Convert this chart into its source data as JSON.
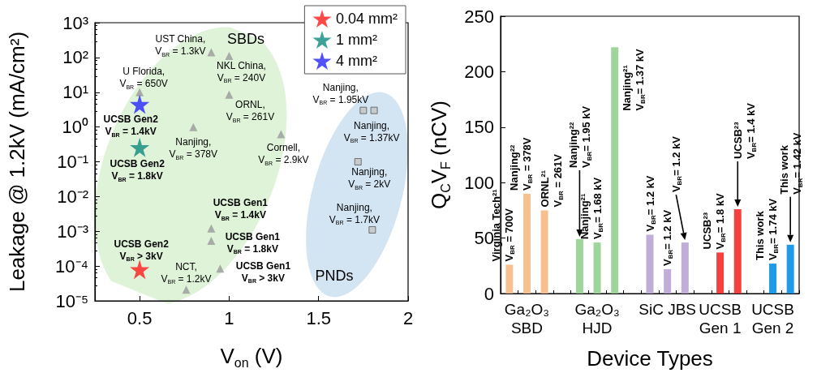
{
  "chart_data": [
    {
      "type": "scatter",
      "xlabel": "V$_{on}$ (V)",
      "ylabel": "Leakage @ 1.2kV (mA/cm²)",
      "log": "y",
      "xlim": [
        0.25,
        2
      ],
      "xticks": [
        0.5,
        1,
        1.5,
        2
      ],
      "ylim": [
        1e-05,
        1000
      ],
      "yticks": [
        {
          "value": 1e-05,
          "label": "10⁻⁵"
        },
        {
          "value": 0.0001,
          "label": "10⁻⁴"
        },
        {
          "value": 0.001,
          "label": "10⁻³"
        },
        {
          "value": 0.01,
          "label": "10⁻²"
        },
        {
          "value": 0.1,
          "label": "10⁻¹"
        },
        {
          "value": 1,
          "label": "10⁰"
        },
        {
          "value": 10,
          "label": "10¹"
        },
        {
          "value": 100,
          "label": "10²"
        },
        {
          "value": 1000,
          "label": "10³"
        }
      ],
      "legend": "top right",
      "series": [
        {
          "name": "0.04 mm²",
          "marker": "star",
          "color": "#ff1a1a",
          "x": [
            0.5
          ],
          "values": [
            8e-05
          ]
        },
        {
          "name": "1 mm²",
          "marker": "star",
          "color": "#0e8a7e",
          "x": [
            0.5
          ],
          "values": [
            0.26
          ]
        },
        {
          "name": "4 mm²",
          "marker": "star",
          "color": "#2424ff",
          "x": [
            0.5
          ],
          "values": [
            4.5
          ]
        },
        {
          "marker": "triangle",
          "color": "#9a9a9a",
          "x": [
            0.9,
            1.0,
            0.5,
            1.0,
            0.8,
            1.29,
            0.9,
            0.9,
            0.95,
            0.76
          ],
          "values": [
            140,
            110,
            10,
            8.5,
            1,
            0.62,
            0.0012,
            0.00053,
            8.5e-05,
            2.1e-05
          ]
        },
        {
          "marker": "square",
          "color": "#c4c4c4",
          "x": [
            1.75,
            1.81,
            1.72,
            1.8
          ],
          "values": [
            3,
            3,
            0.1,
            0.0011
          ]
        }
      ],
      "annotations": [
        {
          "text": "UST China,\nV$_{BR}$ = 1.3kV",
          "x": 0.9,
          "y": 140
        },
        {
          "text": "NKL China,\nV$_{BR}$ = 240V",
          "x": 1.0,
          "y": 110
        },
        {
          "text": "U Florida,\nV$_{BR}$ = 650V",
          "x": 0.5,
          "y": 10
        },
        {
          "text": "ORNL,\nV$_{BR}$ = 261V",
          "x": 1.0,
          "y": 8.5
        },
        {
          "text": "Nanjing,\nV$_{BR}$ = 378V",
          "x": 0.8,
          "y": 1
        },
        {
          "text": "Cornell,\nV$_{BR}$ = 2.9kV",
          "x": 1.29,
          "y": 0.62
        },
        {
          "text": "Nanjing,\nV$_{BR}$ = 1.95kV",
          "x": 1.75,
          "y": 3
        },
        {
          "text": "Nanjing,\nV$_{BR}$ = 1.37kV",
          "x": 1.81,
          "y": 3
        },
        {
          "text": "Nanjing,\nV$_{BR}$ = 2kV",
          "x": 1.72,
          "y": 0.1
        },
        {
          "text": "Nanjing,\nV$_{BR}$ = 1.7kV",
          "x": 1.8,
          "y": 0.0011
        },
        {
          "text": "UCSB Gen1\nV$_{BR}$ = 1.4kV",
          "x": 0.9,
          "y": 0.0012
        },
        {
          "text": "UCSB Gen1\nV$_{BR}$ = 1.8kV",
          "x": 0.9,
          "y": 0.00053
        },
        {
          "text": "UCSB Gen1\nV$_{BR}$ > 3kV",
          "x": 0.95,
          "y": 8.5e-05
        },
        {
          "text": "NCT,\nV$_{BR}$ = 1.2kV",
          "x": 0.76,
          "y": 2.1e-05
        },
        {
          "text": "UCSB Gen2\nV$_{BR}$ > 3kV",
          "x": 0.5,
          "y": 8e-05
        },
        {
          "text": "UCSB Gen2\nV$_{BR}$ = 1.4kV",
          "x": 0.5,
          "y": 4.5
        },
        {
          "text": "UCSB Gen2\nV$_{BR}$ = 1.8kV",
          "x": 0.5,
          "y": 0.26
        },
        "SBDs",
        "PNDs"
      ]
    },
    {
      "type": "bar",
      "xlabel": "Device Types",
      "ylabel": "Q$_{C}$V$_{F}$ (nCV)",
      "categories": [
        null,
        "Ga₂O₃\nSBD",
        null,
        null,
        null,
        "Ga₂O₃\nHJD",
        null,
        null,
        null,
        "SiC JBS",
        null,
        null,
        "UCSB\nGen 1",
        null,
        null,
        "UCSB\nGen 2",
        null
      ],
      "values": [
        26,
        90,
        75,
        null,
        49,
        46,
        222,
        null,
        53,
        22,
        46,
        null,
        37,
        76,
        null,
        27,
        44
      ],
      "colors": [
        "#f9c08f",
        "#f9c08f",
        "#f9c08f",
        null,
        "#9fd59a",
        "#9fd59a",
        "#9fd59a",
        null,
        "#c0aed8",
        "#c0aed8",
        "#c0aed8",
        null,
        "#f54040",
        "#f54040",
        null,
        "#1e9be8",
        "#1e9be8"
      ],
      "ylim": [
        0,
        250
      ],
      "yticks": [
        0,
        50,
        100,
        150,
        200,
        250
      ],
      "annotations": [
        "Virginia Tech²¹\nV$_{BR}$ = 700V",
        "Nanjing²²\nV$_{BR}$ = 378V",
        "ORNL²¹\nV$_{BR}$ = 261V",
        "Nanjing²²\nV$_{BR}$= 1.95 kV",
        "Nanjing²¹\nV$_{BR}$= 1.68 kV",
        "Nanjing²¹\nV$_{BR}$= 1.37 kV",
        "V$_{BR}$= 1.2 kV",
        "V$_{BR}$= 1.2 kV",
        "V$_{BR}$= 1.2 kV",
        "UCSB²³\nV$_{BR}$= 1.8 kV",
        "UCSB²³\nV$_{BR}$= 1.4 kV",
        "This work\nV$_{BR}$= 1.74 kV",
        "This work\nV$_{BR}$= 1.42 kV"
      ]
    }
  ]
}
